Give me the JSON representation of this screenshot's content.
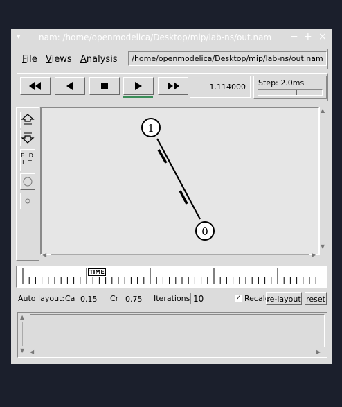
{
  "window": {
    "title": "nam: /home/openmodelica/Desktop/mip/lab-ns/out.nam",
    "menu_glyph": "▾",
    "minimize_glyph": "−",
    "maximize_glyph": "+",
    "close_glyph": "×"
  },
  "menubar": {
    "items": [
      {
        "label": "File",
        "mnemonic": "F",
        "rest": "ile"
      },
      {
        "label": "Views",
        "mnemonic": "V",
        "rest": "iews"
      },
      {
        "label": "Analysis",
        "mnemonic": "A",
        "rest": "nalysis"
      }
    ],
    "file_path": "/home/openmodelica/Desktop/mip/lab-ns/out.nam"
  },
  "toolbar": {
    "buttons": [
      "rewind-icon",
      "back-icon",
      "stop-icon",
      "play-icon",
      "fast-forward-icon"
    ],
    "active_button": "play",
    "active_color": "#3a8d58",
    "current_time": "1.114000",
    "step_label": "Step: 2.0ms",
    "step_slider_position": 0.48
  },
  "tools": {
    "edit_label_1": "E D",
    "edit_label_2": "I T"
  },
  "network": {
    "nodes": [
      {
        "id": "1",
        "label": "1"
      },
      {
        "id": "0",
        "label": "0"
      }
    ],
    "packets_in_flight": 2
  },
  "timeline": {
    "marker_label": "TIME"
  },
  "auto_layout": {
    "label": "Auto layout:",
    "ca_label": "Ca",
    "ca_value": "0.15",
    "cr_label": "Cr",
    "cr_value": "0.75",
    "iterations_label": "Iterations",
    "iterations_value": "10",
    "recalc_label": "Recalc",
    "recalc_checked": true,
    "check_glyph": "✓",
    "relayout_label": "re-layout",
    "reset_label": "reset"
  },
  "scroll": {
    "up": "▲",
    "down": "▼",
    "left": "◀",
    "right": "▶"
  }
}
